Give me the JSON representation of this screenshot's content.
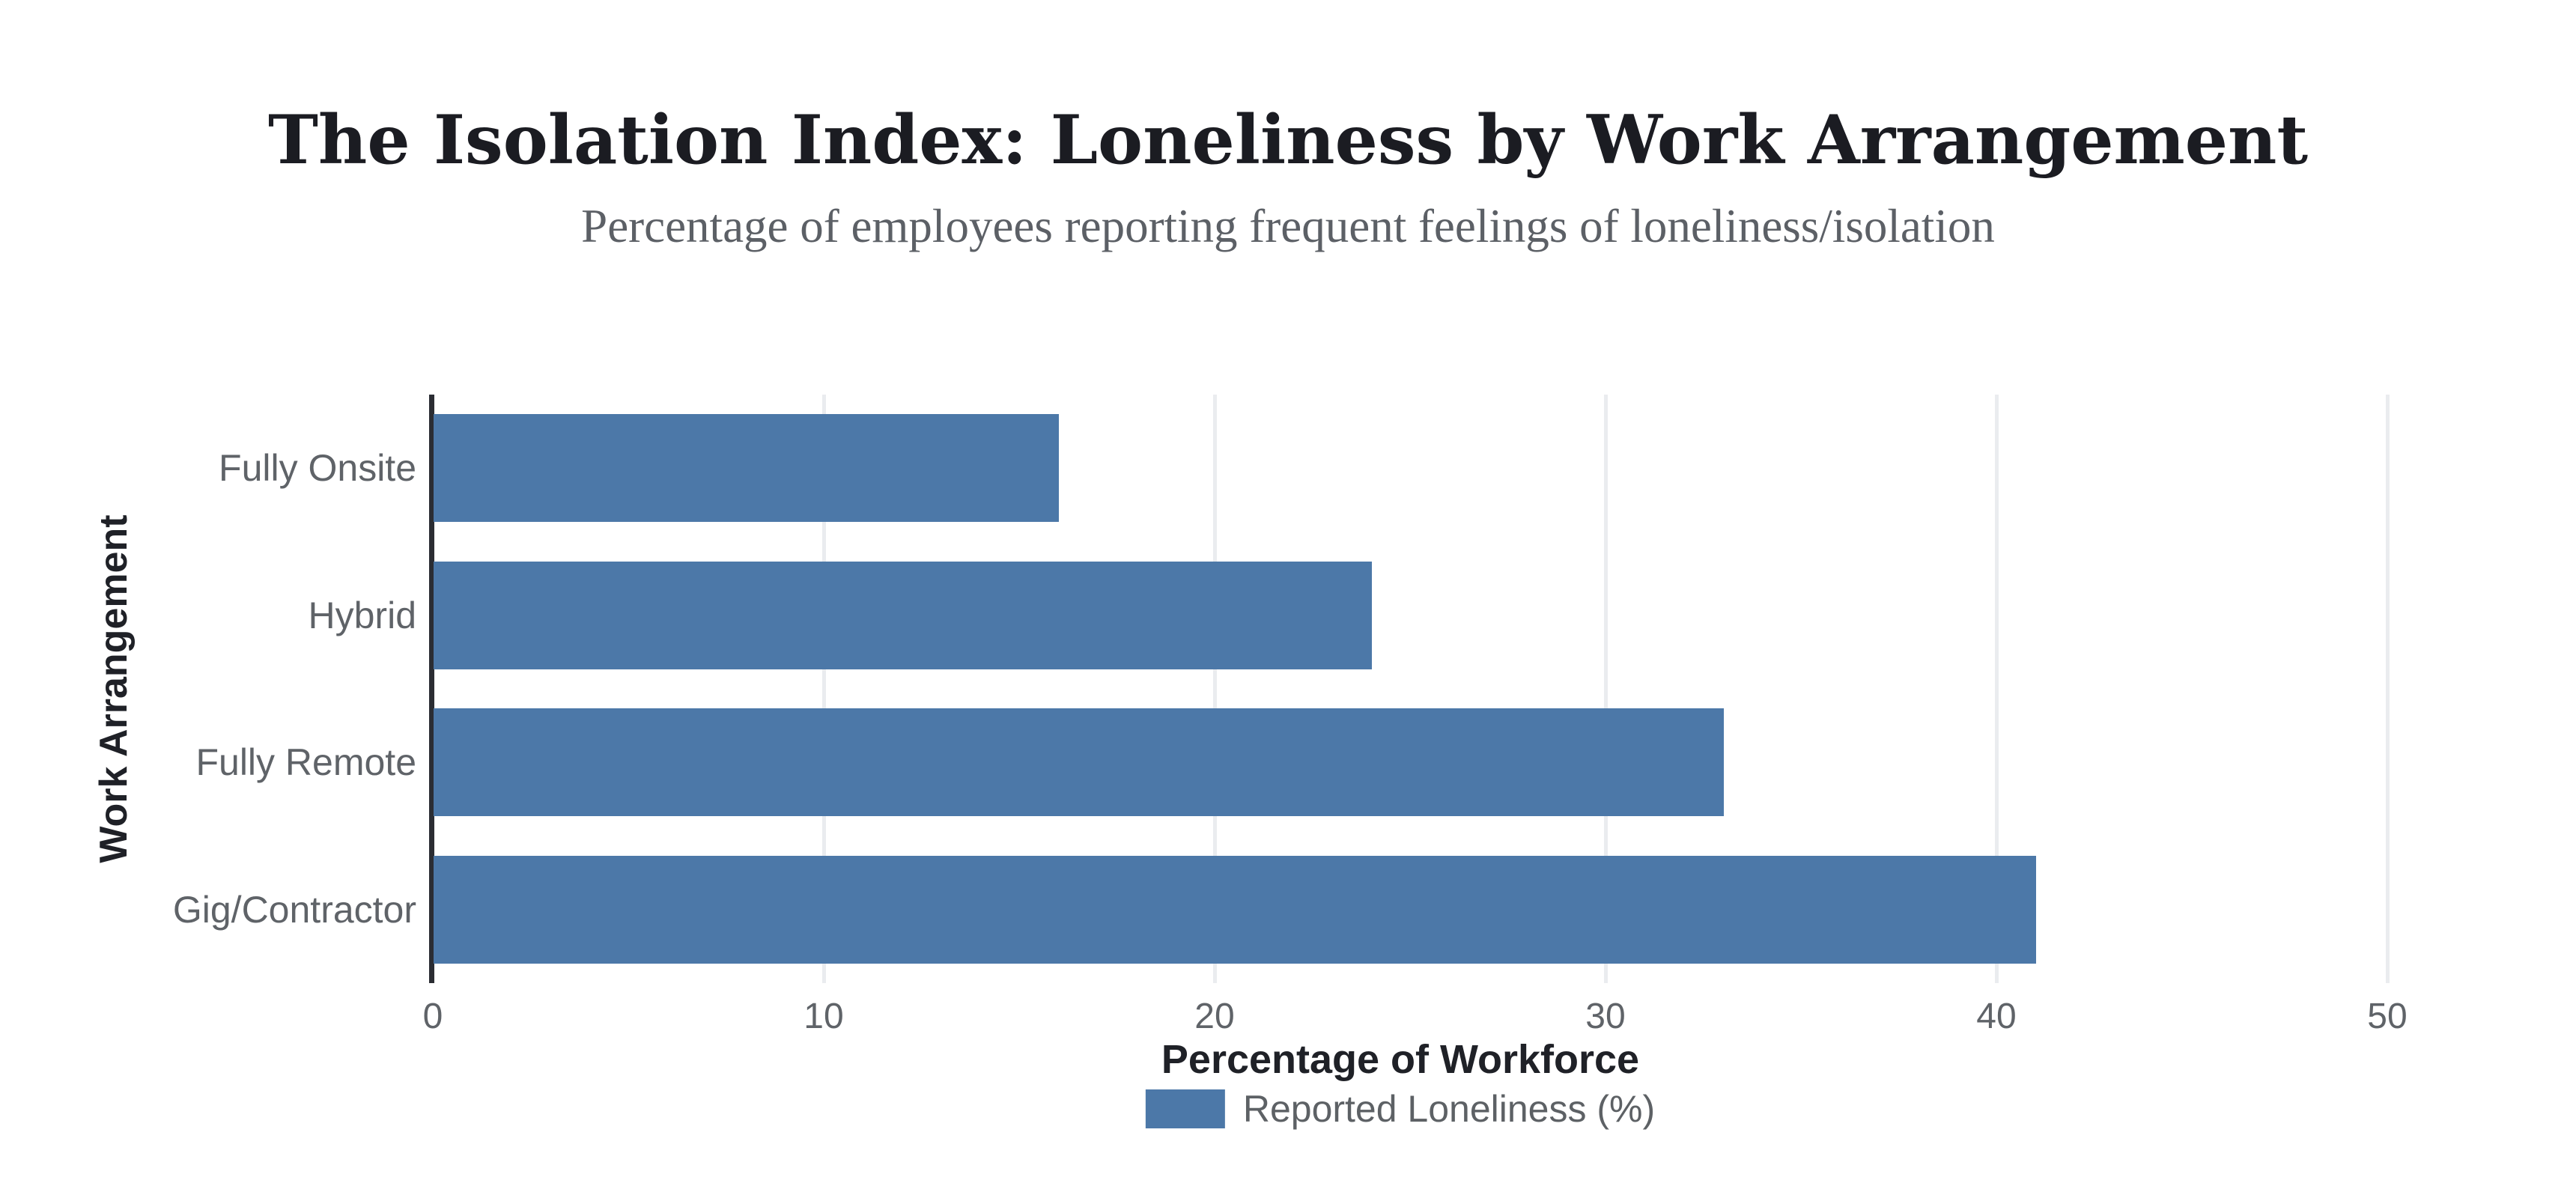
{
  "chart_data": {
    "type": "bar",
    "orientation": "horizontal",
    "title": "The Isolation Index: Loneliness by Work Arrangement",
    "subtitle": "Percentage of employees reporting frequent feelings of loneliness/isolation",
    "categories": [
      "Fully Onsite",
      "Hybrid",
      "Fully Remote",
      "Gig/Contractor"
    ],
    "values": [
      16,
      24,
      33,
      41
    ],
    "series": [
      {
        "name": "Reported Loneliness (%)",
        "values": [
          16,
          24,
          33,
          41
        ]
      }
    ],
    "legend_label": "Reported Loneliness (%)",
    "xlabel": "Percentage of Workforce",
    "ylabel": "Work Arrangement",
    "xlim": [
      0,
      50
    ],
    "xticks": [
      0,
      10,
      20,
      30,
      40,
      50
    ],
    "grid": true,
    "legend_position": "bottom",
    "colors": {
      "bar": "#4C78A8",
      "axis_line": "#2b2d33",
      "gridline": "#eaecef",
      "tick_text": "#5f6368",
      "axis_title_text": "#1f2127",
      "title_text": "#1b1c22",
      "subtitle_text": "#5c6066",
      "background": "#ffffff"
    }
  }
}
